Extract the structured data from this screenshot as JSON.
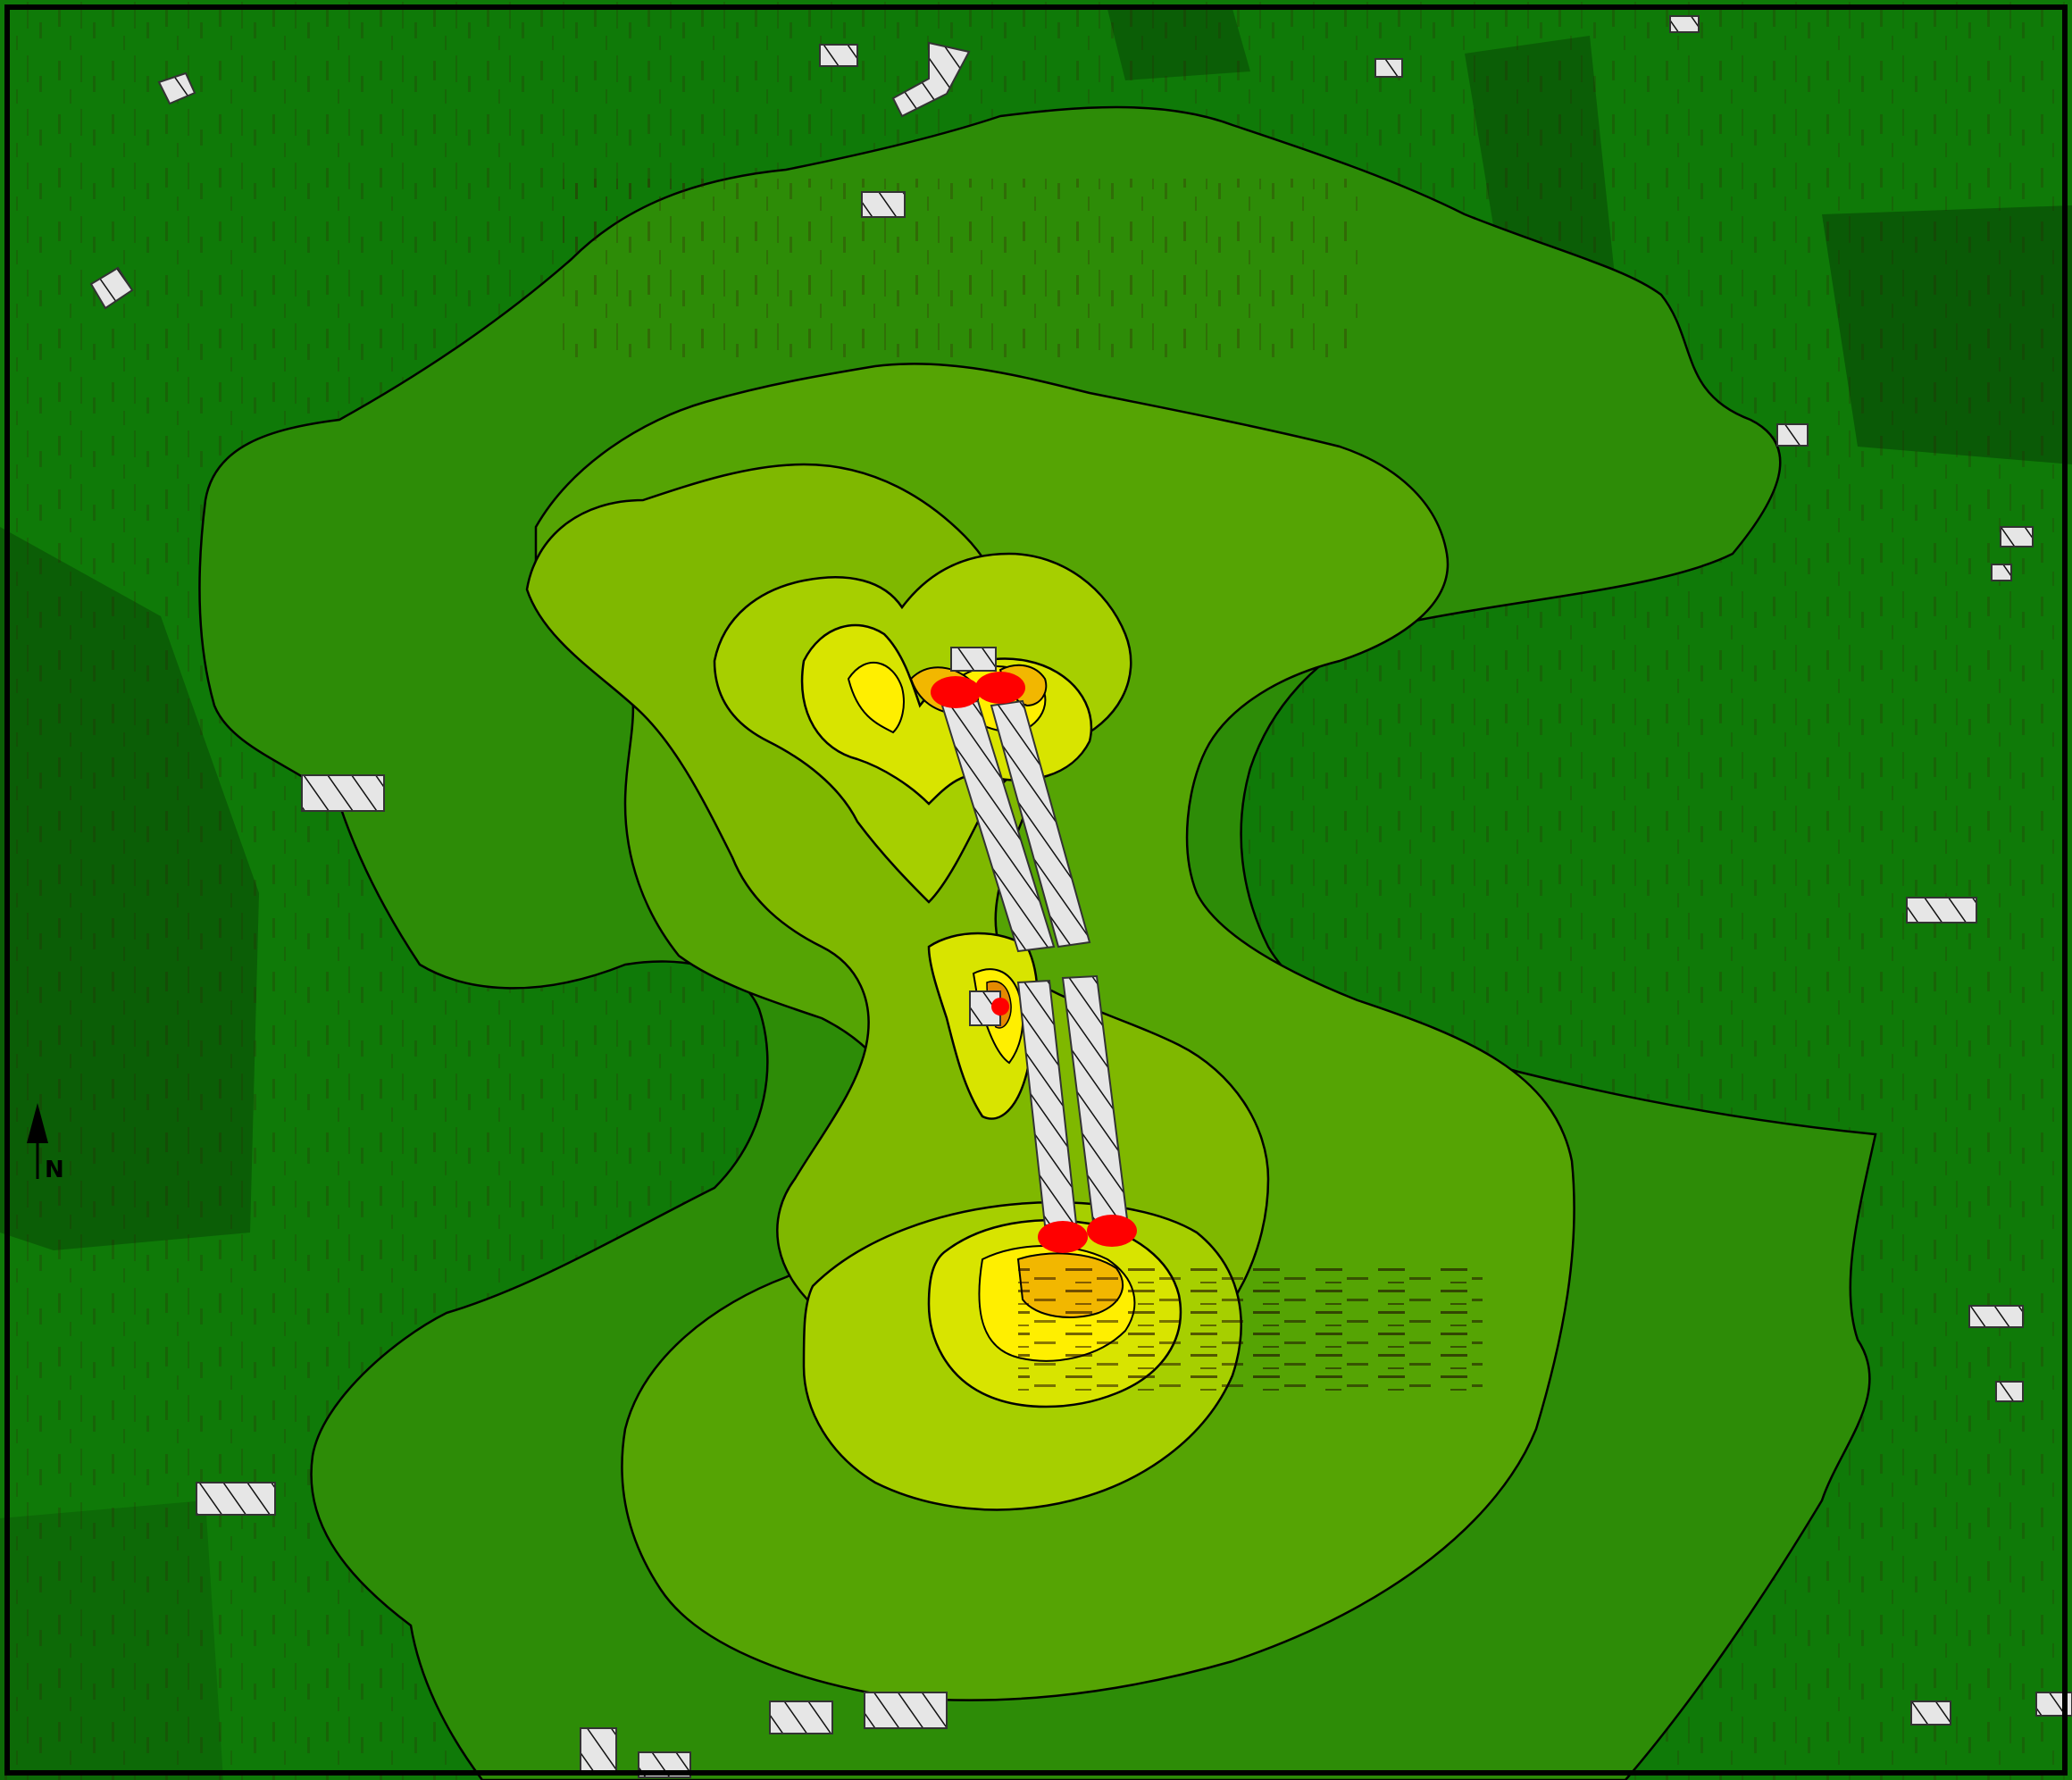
{
  "map": {
    "type": "noise-contour-overlay",
    "basemap": "aerial-farmland",
    "north_arrow_label": "N",
    "colors": {
      "band_0": "#0f7a08",
      "band_1": "#2d8c07",
      "band_2": "#55a404",
      "band_3": "#7fb800",
      "band_4": "#a6cf00",
      "band_5": "#d8e400",
      "band_6": "#ffef00",
      "band_7": "#f2b700",
      "band_8": "#e58a00",
      "hotspot": "#ff0000",
      "contour_line": "#000000",
      "building_fill": "#e6e6e6",
      "building_hatch": "#111111",
      "frame": "#000000"
    },
    "legend": null
  }
}
